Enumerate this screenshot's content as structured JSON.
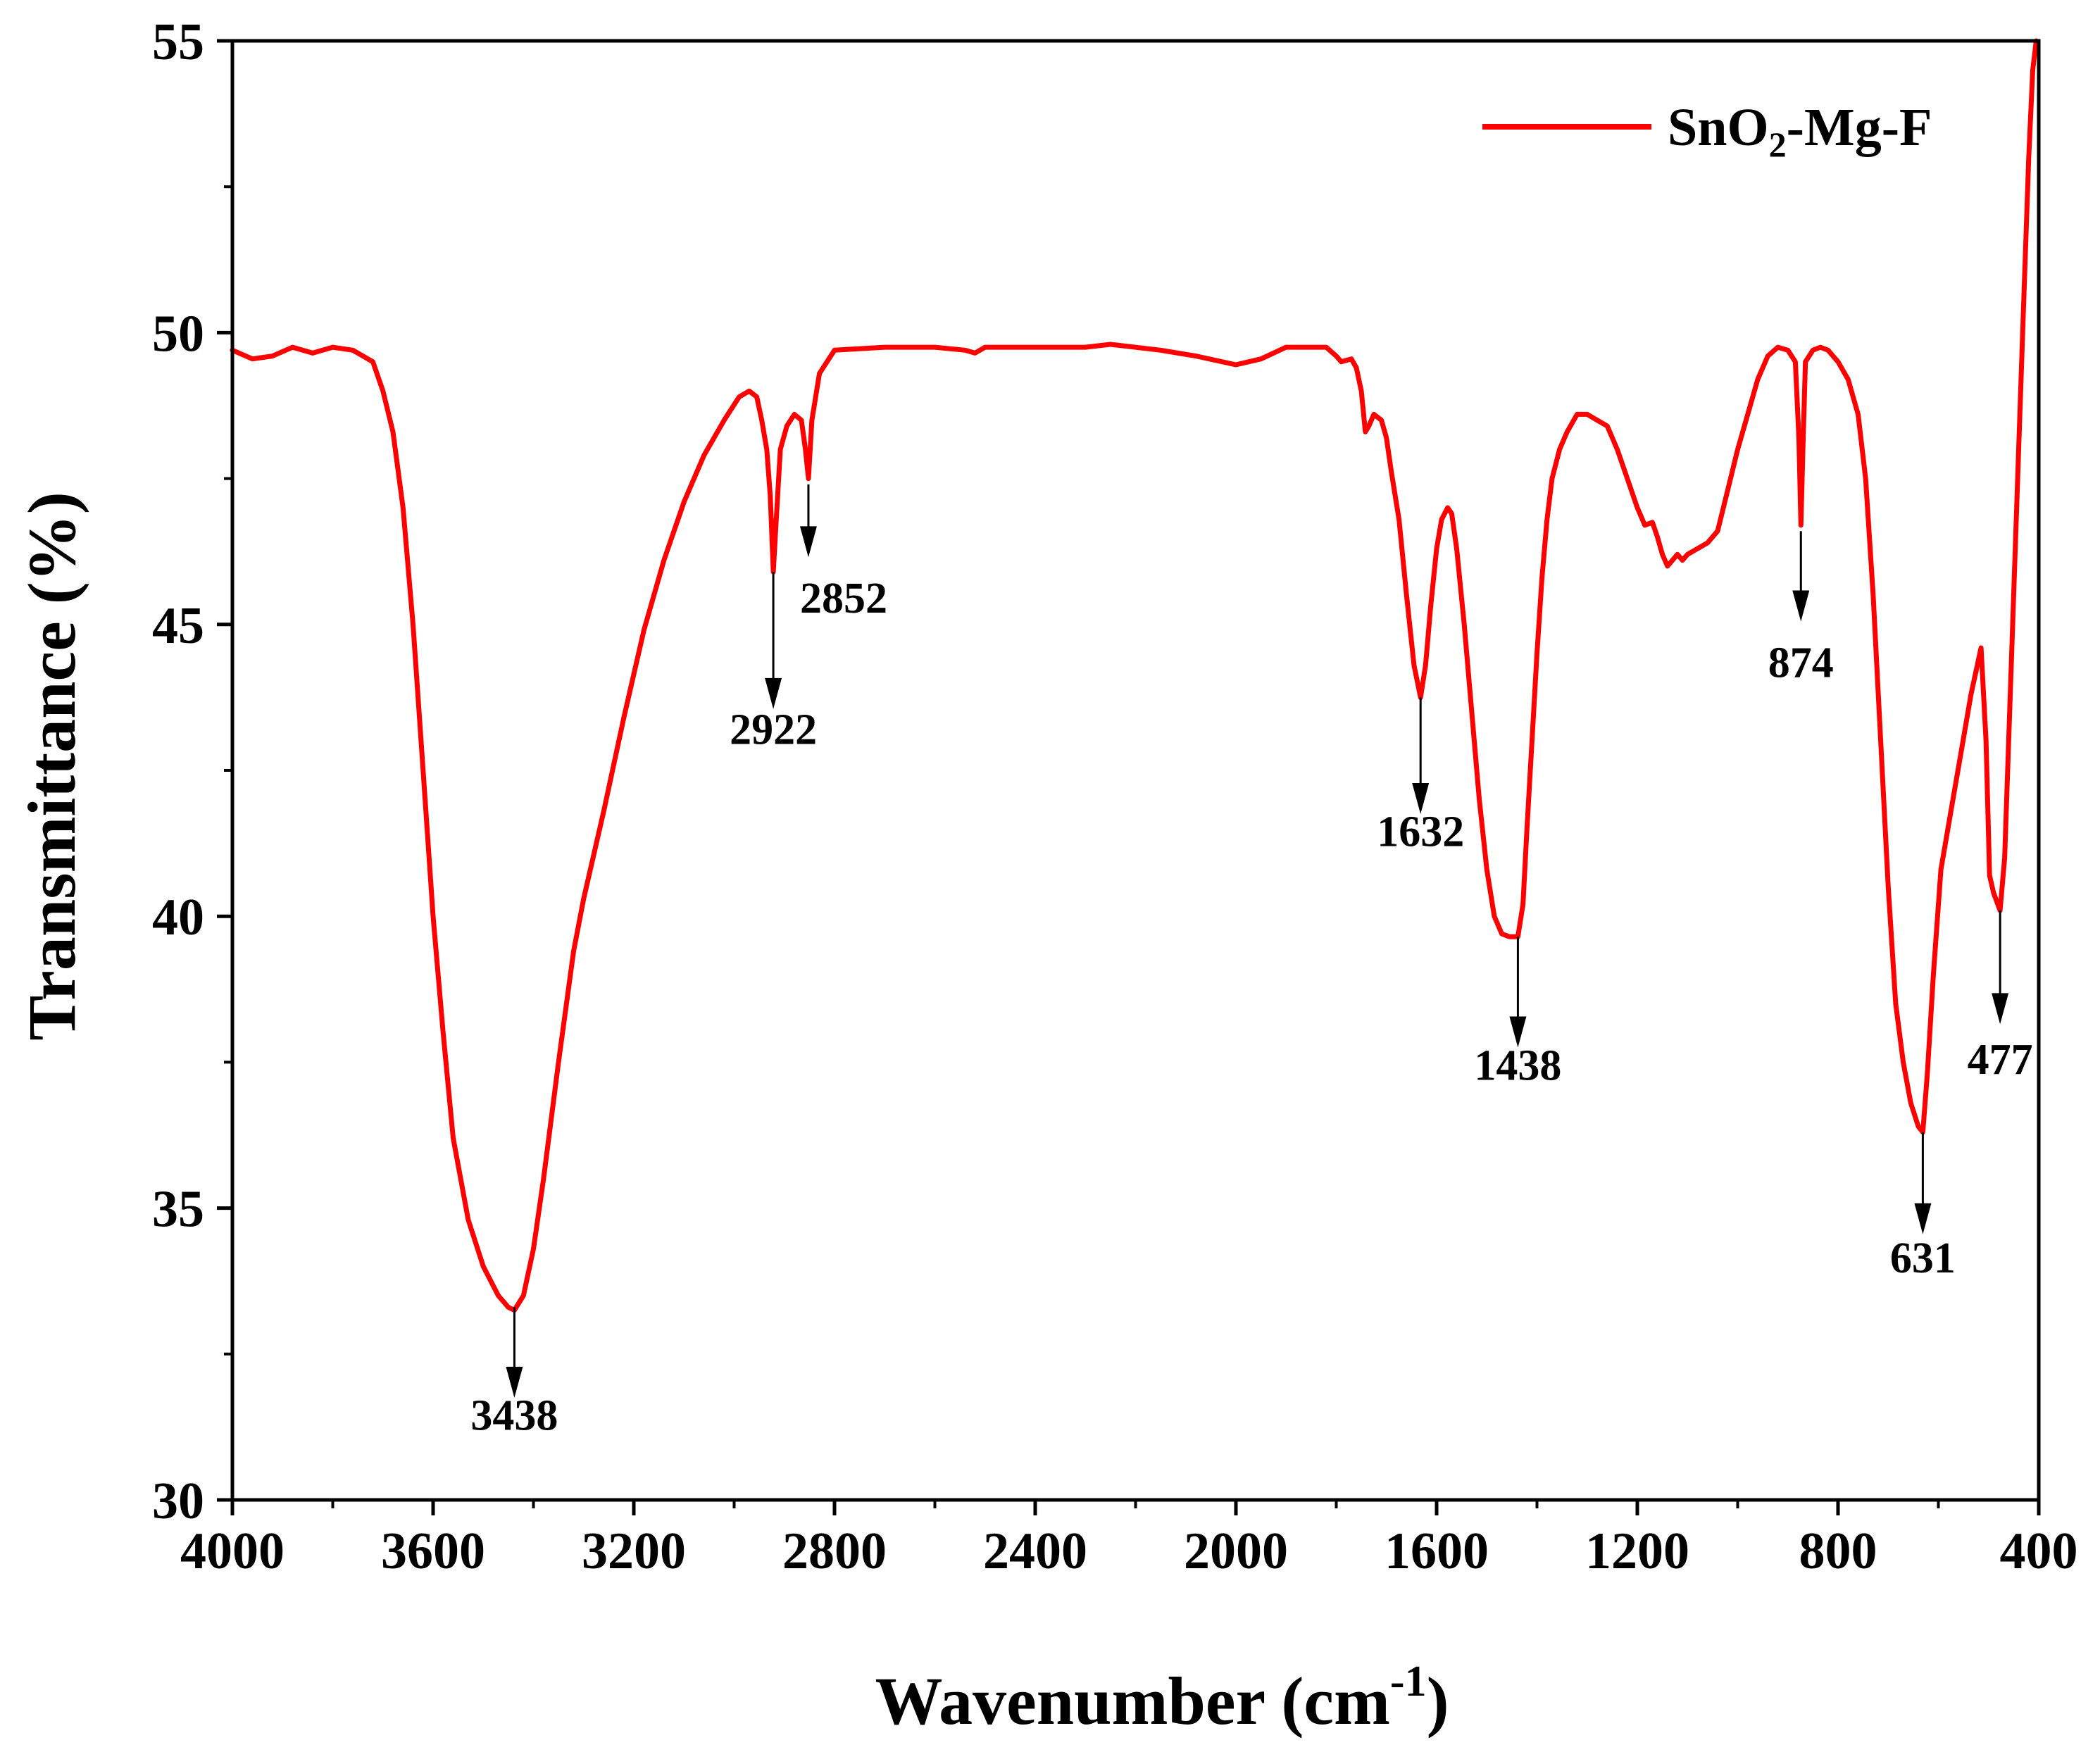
{
  "chart_data": {
    "type": "line",
    "xlabel_main": "Wavenumber (cm",
    "xlabel_sup": "-1",
    "xlabel_end": ")",
    "ylabel": "Transmittance (%)",
    "xlim": [
      4000,
      400
    ],
    "ylim": [
      30,
      55
    ],
    "x_major_ticks": [
      4000,
      3600,
      3200,
      2800,
      2400,
      2000,
      1600,
      1200,
      800,
      400
    ],
    "x_tick_labels": [
      "4000",
      "3600",
      "3200",
      "2800",
      "2400",
      "2000",
      "1600",
      "1200",
      "800",
      "400"
    ],
    "y_major_ticks": [
      30,
      35,
      40,
      45,
      50,
      55
    ],
    "y_tick_labels": [
      "30",
      "35",
      "40",
      "45",
      "50",
      "55"
    ],
    "grid": false,
    "legend": {
      "position": "top-right",
      "label_main": "SnO",
      "label_sub": "2",
      "label_end": "-Mg-F"
    },
    "series": [
      {
        "name": "SnO2-Mg-F",
        "color": "#ff0000",
        "points": [
          [
            4000,
            49.7
          ],
          [
            3960,
            49.55
          ],
          [
            3920,
            49.6
          ],
          [
            3880,
            49.75
          ],
          [
            3840,
            49.65
          ],
          [
            3800,
            49.75
          ],
          [
            3760,
            49.7
          ],
          [
            3720,
            49.5
          ],
          [
            3700,
            49.0
          ],
          [
            3680,
            48.3
          ],
          [
            3660,
            47.0
          ],
          [
            3640,
            45.0
          ],
          [
            3620,
            42.5
          ],
          [
            3600,
            40.0
          ],
          [
            3580,
            38.0
          ],
          [
            3560,
            36.2
          ],
          [
            3530,
            34.8
          ],
          [
            3500,
            34.0
          ],
          [
            3470,
            33.5
          ],
          [
            3450,
            33.3
          ],
          [
            3438,
            33.25
          ],
          [
            3420,
            33.5
          ],
          [
            3400,
            34.3
          ],
          [
            3380,
            35.5
          ],
          [
            3350,
            37.5
          ],
          [
            3320,
            39.4
          ],
          [
            3300,
            40.3
          ],
          [
            3260,
            41.8
          ],
          [
            3220,
            43.4
          ],
          [
            3180,
            44.9
          ],
          [
            3140,
            46.1
          ],
          [
            3100,
            47.1
          ],
          [
            3060,
            47.9
          ],
          [
            3020,
            48.5
          ],
          [
            2990,
            48.9
          ],
          [
            2970,
            49.0
          ],
          [
            2955,
            48.9
          ],
          [
            2945,
            48.5
          ],
          [
            2935,
            48.0
          ],
          [
            2928,
            47.2
          ],
          [
            2922,
            45.9
          ],
          [
            2916,
            46.8
          ],
          [
            2908,
            48.0
          ],
          [
            2895,
            48.4
          ],
          [
            2880,
            48.6
          ],
          [
            2866,
            48.5
          ],
          [
            2858,
            48.0
          ],
          [
            2852,
            47.5
          ],
          [
            2845,
            48.5
          ],
          [
            2830,
            49.3
          ],
          [
            2800,
            49.7
          ],
          [
            2700,
            49.75
          ],
          [
            2600,
            49.75
          ],
          [
            2540,
            49.7
          ],
          [
            2520,
            49.65
          ],
          [
            2500,
            49.75
          ],
          [
            2400,
            49.75
          ],
          [
            2300,
            49.75
          ],
          [
            2250,
            49.8
          ],
          [
            2150,
            49.7
          ],
          [
            2080,
            49.6
          ],
          [
            2000,
            49.45
          ],
          [
            1950,
            49.55
          ],
          [
            1900,
            49.75
          ],
          [
            1820,
            49.75
          ],
          [
            1800,
            49.6
          ],
          [
            1790,
            49.5
          ],
          [
            1770,
            49.55
          ],
          [
            1760,
            49.4
          ],
          [
            1750,
            49.0
          ],
          [
            1742,
            48.3
          ],
          [
            1735,
            48.4
          ],
          [
            1725,
            48.6
          ],
          [
            1710,
            48.5
          ],
          [
            1700,
            48.2
          ],
          [
            1690,
            47.6
          ],
          [
            1675,
            46.8
          ],
          [
            1660,
            45.5
          ],
          [
            1645,
            44.3
          ],
          [
            1632,
            43.75
          ],
          [
            1622,
            44.3
          ],
          [
            1612,
            45.3
          ],
          [
            1600,
            46.3
          ],
          [
            1590,
            46.8
          ],
          [
            1578,
            47.0
          ],
          [
            1570,
            46.9
          ],
          [
            1560,
            46.3
          ],
          [
            1545,
            45.0
          ],
          [
            1530,
            43.5
          ],
          [
            1515,
            42.0
          ],
          [
            1500,
            40.8
          ],
          [
            1485,
            40.0
          ],
          [
            1470,
            39.7
          ],
          [
            1455,
            39.65
          ],
          [
            1438,
            39.65
          ],
          [
            1428,
            40.2
          ],
          [
            1420,
            41.5
          ],
          [
            1410,
            43.0
          ],
          [
            1400,
            44.5
          ],
          [
            1390,
            45.8
          ],
          [
            1380,
            46.8
          ],
          [
            1370,
            47.5
          ],
          [
            1355,
            48.0
          ],
          [
            1340,
            48.3
          ],
          [
            1320,
            48.6
          ],
          [
            1300,
            48.6
          ],
          [
            1280,
            48.5
          ],
          [
            1260,
            48.4
          ],
          [
            1240,
            48.0
          ],
          [
            1220,
            47.5
          ],
          [
            1200,
            47.0
          ],
          [
            1185,
            46.7
          ],
          [
            1170,
            46.75
          ],
          [
            1160,
            46.5
          ],
          [
            1150,
            46.2
          ],
          [
            1140,
            46.0
          ],
          [
            1130,
            46.1
          ],
          [
            1120,
            46.2
          ],
          [
            1110,
            46.1
          ],
          [
            1100,
            46.2
          ],
          [
            1080,
            46.3
          ],
          [
            1060,
            46.4
          ],
          [
            1040,
            46.6
          ],
          [
            1020,
            47.3
          ],
          [
            1000,
            48.0
          ],
          [
            980,
            48.6
          ],
          [
            960,
            49.2
          ],
          [
            940,
            49.6
          ],
          [
            920,
            49.75
          ],
          [
            900,
            49.7
          ],
          [
            885,
            49.5
          ],
          [
            878,
            48.2
          ],
          [
            874,
            46.7
          ],
          [
            870,
            48.0
          ],
          [
            865,
            49.5
          ],
          [
            850,
            49.7
          ],
          [
            835,
            49.75
          ],
          [
            820,
            49.7
          ],
          [
            800,
            49.5
          ],
          [
            780,
            49.2
          ],
          [
            760,
            48.6
          ],
          [
            745,
            47.5
          ],
          [
            730,
            45.5
          ],
          [
            715,
            43.0
          ],
          [
            700,
            40.5
          ],
          [
            685,
            38.5
          ],
          [
            670,
            37.5
          ],
          [
            655,
            36.8
          ],
          [
            640,
            36.4
          ],
          [
            631,
            36.3
          ],
          [
            622,
            37.3
          ],
          [
            610,
            39.0
          ],
          [
            595,
            40.8
          ],
          [
            575,
            41.8
          ],
          [
            555,
            42.8
          ],
          [
            535,
            43.8
          ],
          [
            515,
            44.6
          ],
          [
            505,
            43.0
          ],
          [
            498,
            40.7
          ],
          [
            490,
            40.4
          ],
          [
            477,
            40.1
          ],
          [
            468,
            41.0
          ],
          [
            460,
            43.0
          ],
          [
            450,
            45.5
          ],
          [
            440,
            48.0
          ],
          [
            430,
            50.5
          ],
          [
            420,
            53.0
          ],
          [
            412,
            54.5
          ],
          [
            405,
            55.0
          ]
        ]
      }
    ],
    "annotations": [
      {
        "label": "3438",
        "x": 3438,
        "y_tip": 33.3,
        "y_arrow_end": 31.8,
        "y_text": 31.2,
        "align": "center"
      },
      {
        "label": "2922",
        "x": 2922,
        "y_tip": 45.9,
        "y_arrow_end": 43.6,
        "y_text": 42.95,
        "align": "center"
      },
      {
        "label": "2852",
        "x": 2852,
        "y_tip": 47.4,
        "y_arrow_end": 46.2,
        "y_text": 45.2,
        "align": "left"
      },
      {
        "label": "1632",
        "x": 1632,
        "y_tip": 43.75,
        "y_arrow_end": 41.8,
        "y_text": 41.2,
        "align": "center"
      },
      {
        "label": "1438",
        "x": 1438,
        "y_tip": 39.65,
        "y_arrow_end": 37.8,
        "y_text": 37.2,
        "align": "center"
      },
      {
        "label": "874",
        "x": 874,
        "y_tip": 46.6,
        "y_arrow_end": 45.1,
        "y_text": 44.1,
        "align": "center"
      },
      {
        "label": "631",
        "x": 631,
        "y_tip": 36.3,
        "y_arrow_end": 34.6,
        "y_text": 33.9,
        "align": "center"
      },
      {
        "label": "477",
        "x": 477,
        "y_tip": 40.1,
        "y_arrow_end": 38.2,
        "y_text": 37.3,
        "align": "center"
      }
    ]
  }
}
